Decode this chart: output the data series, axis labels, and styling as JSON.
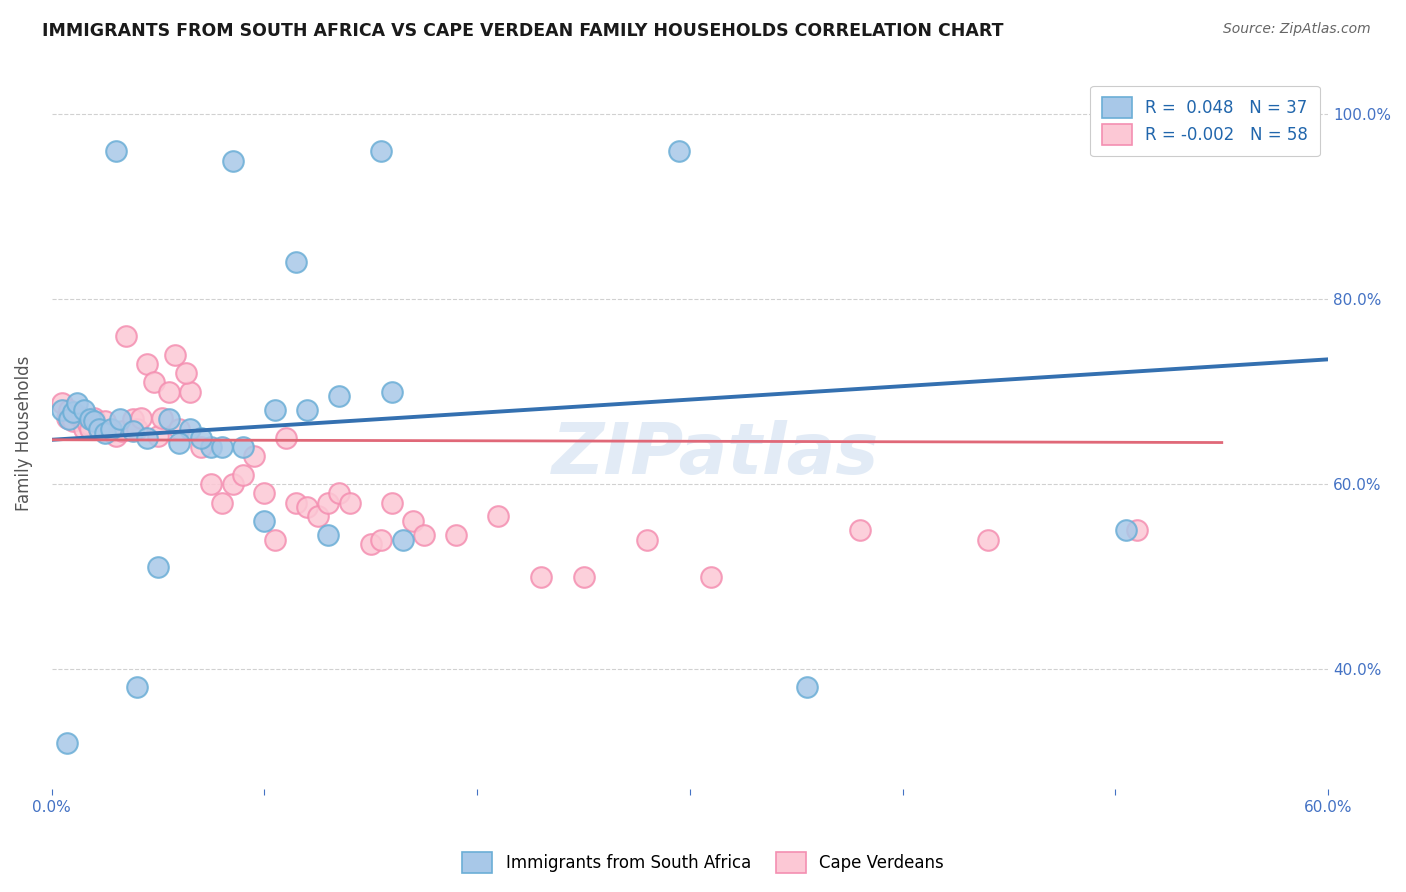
{
  "title": "IMMIGRANTS FROM SOUTH AFRICA VS CAPE VERDEAN FAMILY HOUSEHOLDS CORRELATION CHART",
  "source": "Source: ZipAtlas.com",
  "ylabel": "Family Households",
  "xlim": [
    0.0,
    0.6
  ],
  "ylim": [
    0.27,
    1.04
  ],
  "yticks": [
    0.4,
    0.6,
    0.8,
    1.0
  ],
  "ytick_labels": [
    "40.0%",
    "60.0%",
    "80.0%",
    "100.0%"
  ],
  "xticks": [
    0.0,
    0.1,
    0.2,
    0.3,
    0.4,
    0.5,
    0.6
  ],
  "xtick_labels": [
    "0.0%",
    "",
    "",
    "",
    "",
    "",
    "60.0%"
  ],
  "legend_blue_label": "R =  0.048   N = 37",
  "legend_pink_label": "R = -0.002   N = 58",
  "blue_color": "#a8c8e8",
  "blue_edge_color": "#6baed6",
  "pink_color": "#fcc8d5",
  "pink_edge_color": "#f48fb1",
  "line_blue_color": "#3470b0",
  "line_pink_color": "#e06878",
  "watermark": "ZIPatlas",
  "blue_points_x": [
    0.155,
    0.295,
    0.03,
    0.085,
    0.005,
    0.008,
    0.01,
    0.012,
    0.015,
    0.018,
    0.02,
    0.022,
    0.025,
    0.028,
    0.032,
    0.038,
    0.045,
    0.055,
    0.065,
    0.075,
    0.09,
    0.105,
    0.12,
    0.135,
    0.16,
    0.115,
    0.07,
    0.08,
    0.1,
    0.13,
    0.165,
    0.355,
    0.505,
    0.05,
    0.06,
    0.04,
    0.007
  ],
  "blue_points_y": [
    0.96,
    0.96,
    0.96,
    0.95,
    0.68,
    0.67,
    0.678,
    0.688,
    0.68,
    0.67,
    0.668,
    0.66,
    0.655,
    0.66,
    0.67,
    0.658,
    0.65,
    0.67,
    0.66,
    0.64,
    0.64,
    0.68,
    0.68,
    0.695,
    0.7,
    0.84,
    0.65,
    0.64,
    0.56,
    0.545,
    0.54,
    0.38,
    0.55,
    0.51,
    0.645,
    0.38,
    0.32
  ],
  "pink_points_x": [
    0.005,
    0.007,
    0.008,
    0.009,
    0.01,
    0.012,
    0.014,
    0.015,
    0.017,
    0.018,
    0.02,
    0.022,
    0.025,
    0.028,
    0.03,
    0.033,
    0.035,
    0.038,
    0.04,
    0.042,
    0.045,
    0.048,
    0.05,
    0.052,
    0.055,
    0.058,
    0.06,
    0.065,
    0.07,
    0.075,
    0.08,
    0.085,
    0.09,
    0.095,
    0.1,
    0.105,
    0.11,
    0.115,
    0.12,
    0.125,
    0.13,
    0.135,
    0.14,
    0.15,
    0.155,
    0.16,
    0.17,
    0.175,
    0.19,
    0.21,
    0.23,
    0.25,
    0.28,
    0.31,
    0.38,
    0.44,
    0.51,
    0.063
  ],
  "pink_points_y": [
    0.688,
    0.672,
    0.68,
    0.672,
    0.668,
    0.675,
    0.672,
    0.66,
    0.665,
    0.66,
    0.672,
    0.66,
    0.668,
    0.658,
    0.652,
    0.658,
    0.76,
    0.67,
    0.66,
    0.672,
    0.73,
    0.71,
    0.652,
    0.672,
    0.7,
    0.74,
    0.66,
    0.7,
    0.64,
    0.6,
    0.58,
    0.6,
    0.61,
    0.63,
    0.59,
    0.54,
    0.65,
    0.58,
    0.575,
    0.565,
    0.58,
    0.59,
    0.58,
    0.535,
    0.54,
    0.58,
    0.56,
    0.545,
    0.545,
    0.565,
    0.5,
    0.5,
    0.54,
    0.5,
    0.55,
    0.54,
    0.55,
    0.72
  ],
  "blue_trendline_x": [
    0.0,
    0.6
  ],
  "blue_trendline_y": [
    0.648,
    0.735
  ],
  "pink_trendline_x": [
    0.0,
    0.55
  ],
  "pink_trendline_y": [
    0.648,
    0.645
  ]
}
